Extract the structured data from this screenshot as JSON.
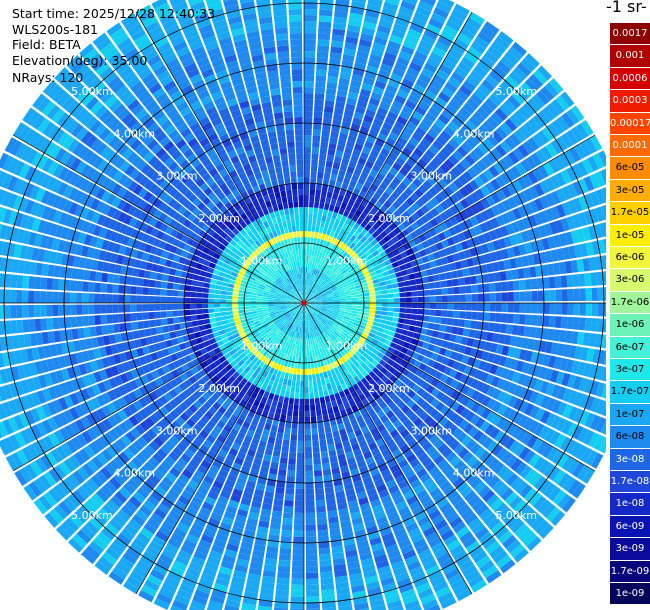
{
  "header": {
    "start_time": "Start time: 2025/12/28 12:40:33",
    "instrument": "WLS200s-181",
    "field": "Field: BETA",
    "elevation": "Elevation(deg): 35.00",
    "nrays": "NRays: 120"
  },
  "colorbar": {
    "title_fragment": "-1 sr-",
    "levels": [
      "0.0017",
      "0.001",
      "0.0006",
      "0.0003",
      "0.00017",
      "0.0001",
      "6e-05",
      "3e-05",
      "1.7e-05",
      "1e-05",
      "6e-06",
      "3e-06",
      "1.7e-06",
      "1e-06",
      "6e-07",
      "3e-07",
      "1.7e-07",
      "1e-07",
      "6e-08",
      "3e-08",
      "1.7e-08",
      "1e-08",
      "6e-09",
      "3e-09",
      "1.7e-09",
      "1e-09"
    ],
    "colors": [
      "#8c0000",
      "#b00000",
      "#d40000",
      "#f01c00",
      "#ff4400",
      "#ff6a00",
      "#ff8c00",
      "#ffae00",
      "#ffd000",
      "#ffee00",
      "#f2f53c",
      "#d8f870",
      "#a0f59a",
      "#6ef2b8",
      "#44f0d8",
      "#1ee8e8",
      "#14cdf0",
      "#1aa8f5",
      "#1e8af0",
      "#1e66e6",
      "#1e46d8",
      "#1428c8",
      "#0a14b4",
      "#0a0a9c",
      "#06067a",
      "#04045a"
    ]
  },
  "chart_data": {
    "type": "ppi",
    "field": "BETA",
    "elevation_deg": 35.0,
    "nrays": 120,
    "range_rings": [
      {
        "label": "1.00km",
        "km": 1.0
      },
      {
        "label": "2.00km",
        "km": 2.0
      },
      {
        "label": "3.00km",
        "km": 3.0
      },
      {
        "label": "4.00km",
        "km": 4.0
      },
      {
        "label": "5.00km",
        "km": 5.0
      }
    ],
    "max_range_km": 5.6,
    "spoke_step_deg": 30,
    "range_profile": [
      {
        "km": 0.0,
        "level": "1.7e-07"
      },
      {
        "km": 0.6,
        "level": "3e-07"
      },
      {
        "km": 1.1,
        "level": "6e-06"
      },
      {
        "km": 1.25,
        "level": "1.7e-07"
      },
      {
        "km": 1.6,
        "level": "1e-08"
      },
      {
        "km": 2.0,
        "level": "3e-08"
      },
      {
        "km": 3.5,
        "level": "6e-08"
      },
      {
        "km": 4.6,
        "level": "1e-07"
      },
      {
        "km": 5.6,
        "level": "6e-08"
      }
    ]
  }
}
